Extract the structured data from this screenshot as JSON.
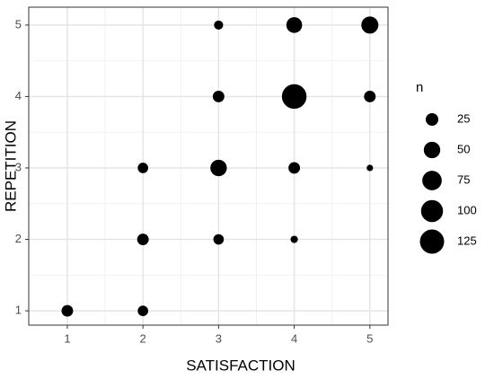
{
  "chart_data": {
    "type": "scatter",
    "x_label": "SATISFACTION",
    "y_label": "REPETITION",
    "x": [
      1,
      2,
      2,
      2,
      3,
      3,
      3,
      3,
      4,
      4,
      4,
      4,
      5,
      5,
      5
    ],
    "y": [
      1,
      1,
      2,
      3,
      2,
      3,
      4,
      5,
      2,
      3,
      4,
      5,
      3,
      4,
      5
    ],
    "sizes": [
      20,
      15,
      20,
      15,
      15,
      50,
      20,
      10,
      5,
      20,
      130,
      45,
      3,
      20,
      55
    ],
    "color": "#000000",
    "xlim": [
      0.49,
      5.24
    ],
    "ylim": [
      0.8,
      5.25
    ],
    "xticks": [
      1,
      2,
      3,
      4,
      5
    ],
    "yticks": [
      1,
      2,
      3,
      4,
      5
    ],
    "grid": true,
    "size_legend": {
      "title": "n",
      "values": [
        25,
        50,
        75,
        100,
        125
      ]
    }
  }
}
